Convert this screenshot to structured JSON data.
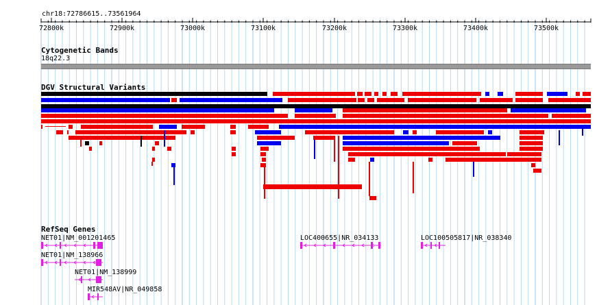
{
  "location": "chr18:72786615..73561964",
  "ruler": {
    "ticks": [
      "72800k",
      "72900k",
      "73000k",
      "73100k",
      "73200k",
      "73300k",
      "73400k",
      "73500k"
    ]
  },
  "tracks": {
    "cytobands": {
      "title": "Cytogenetic Bands",
      "band": "18q22.3"
    },
    "dgv": {
      "title": "DGV Structural Variants"
    },
    "refseq": {
      "title": "RefSeq Genes",
      "genes": [
        "NET01|NM_001201465",
        "NET01|NM_138966",
        "NET01|NM_138999",
        "MIR548AV|NR_049858",
        "LOC400655|NR_034133",
        "LOC100505817|NR_038340"
      ]
    }
  },
  "colors": {
    "grid": "#b8d8ee",
    "gain": "#ee0000",
    "loss": "#0000ee",
    "complex": "#000000",
    "gene": "#e020e0",
    "band": "#999999"
  }
}
